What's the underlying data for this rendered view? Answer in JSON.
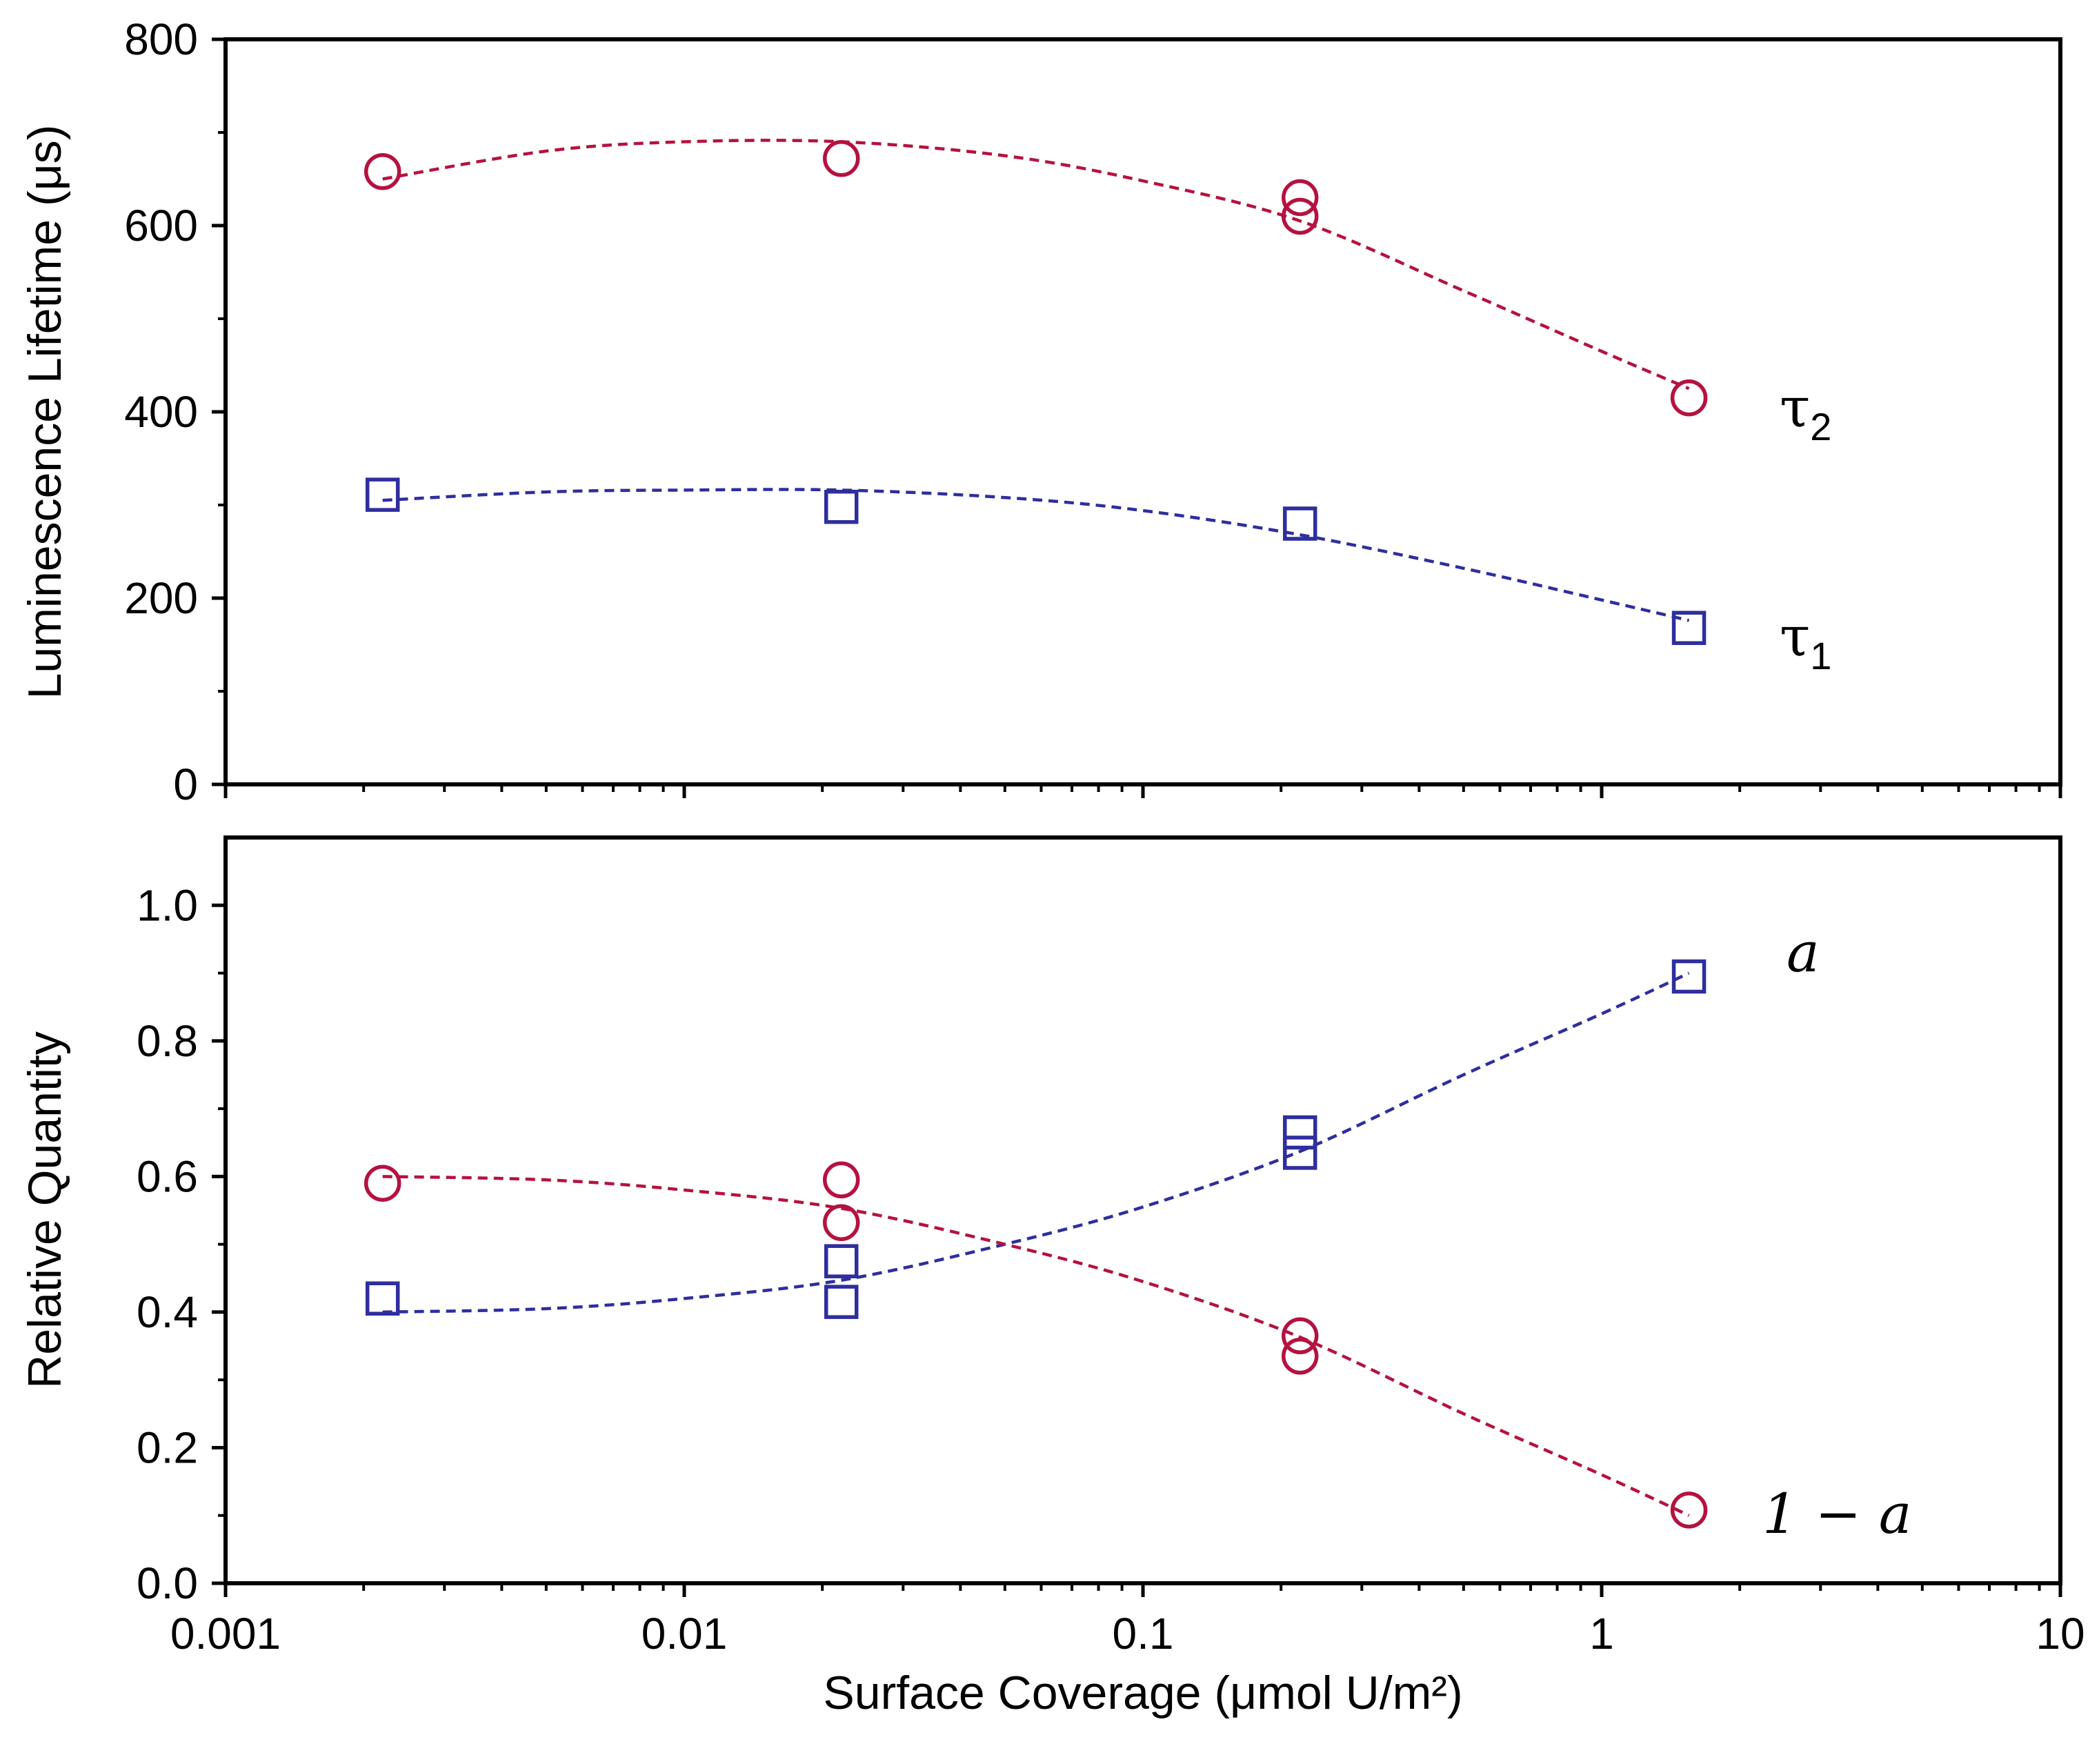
{
  "chart_data": [
    {
      "type": "scatter",
      "panel": "top",
      "ylabel": "Luminescence Lifetime (μs)",
      "xlabel": "",
      "xscale": "log",
      "xlim": [
        0.001,
        10
      ],
      "ylim": [
        0,
        800
      ],
      "yticks": [
        0,
        200,
        400,
        600,
        800
      ],
      "ytick_labels": [
        "0",
        "200",
        "400",
        "600",
        "800"
      ],
      "series": [
        {
          "name": "tau2",
          "label_symbol": "τ",
          "label_sub": "2",
          "color": "#b5123f",
          "marker": "circle",
          "x": [
            0.0022,
            0.022,
            0.22,
            0.22,
            1.55
          ],
          "y": [
            658,
            672,
            630,
            610,
            415
          ],
          "fit_x": [
            0.0022,
            0.005,
            0.01,
            0.022,
            0.05,
            0.1,
            0.22,
            0.5,
            1.0,
            1.55
          ],
          "fit_y": [
            650,
            680,
            690,
            690,
            675,
            648,
            605,
            530,
            465,
            425
          ]
        },
        {
          "name": "tau1",
          "label_symbol": "τ",
          "label_sub": "1",
          "color": "#2e2e9e",
          "marker": "square",
          "x": [
            0.0022,
            0.022,
            0.22,
            1.55
          ],
          "y": [
            311,
            298,
            280,
            168
          ],
          "fit_x": [
            0.0022,
            0.005,
            0.01,
            0.022,
            0.05,
            0.1,
            0.22,
            0.5,
            1.0,
            1.55
          ],
          "fit_y": [
            305,
            314,
            316,
            316,
            308,
            294,
            268,
            232,
            198,
            176
          ]
        }
      ]
    },
    {
      "type": "scatter",
      "panel": "bottom",
      "ylabel": "Relative Quantity",
      "xlabel": "Surface Coverage (μmol U/m²)",
      "xscale": "log",
      "xlim": [
        0.001,
        10
      ],
      "ylim": [
        0,
        1.1
      ],
      "yticks": [
        0,
        0.2,
        0.4,
        0.6,
        0.8,
        1.0
      ],
      "ytick_labels": [
        "0.0",
        "0.2",
        "0.4",
        "0.6",
        "0.8",
        "1.0"
      ],
      "xticks": [
        0.001,
        0.01,
        0.1,
        1,
        10
      ],
      "xtick_labels": [
        "0.001",
        "0.01",
        "0.1",
        "1",
        "10"
      ],
      "series": [
        {
          "name": "a",
          "label": "a",
          "color": "#2e2e9e",
          "marker": "square",
          "x": [
            0.0022,
            0.022,
            0.022,
            0.22,
            0.22,
            1.55
          ],
          "y": [
            0.42,
            0.475,
            0.415,
            0.665,
            0.635,
            0.895
          ],
          "fit_x": [
            0.0022,
            0.005,
            0.01,
            0.022,
            0.05,
            0.1,
            0.22,
            0.5,
            1.0,
            1.55
          ],
          "fit_y": [
            0.4,
            0.405,
            0.42,
            0.447,
            0.5,
            0.555,
            0.637,
            0.75,
            0.84,
            0.9
          ]
        },
        {
          "name": "one_minus_a",
          "label": "1 − a",
          "color": "#b5123f",
          "marker": "circle",
          "x": [
            0.0022,
            0.022,
            0.022,
            0.22,
            0.22,
            1.55
          ],
          "y": [
            0.59,
            0.595,
            0.532,
            0.365,
            0.335,
            0.108
          ],
          "fit_x": [
            0.0022,
            0.005,
            0.01,
            0.022,
            0.05,
            0.1,
            0.22,
            0.5,
            1.0,
            1.55
          ],
          "fit_y": [
            0.6,
            0.595,
            0.58,
            0.553,
            0.5,
            0.445,
            0.363,
            0.25,
            0.16,
            0.1
          ]
        }
      ]
    }
  ]
}
